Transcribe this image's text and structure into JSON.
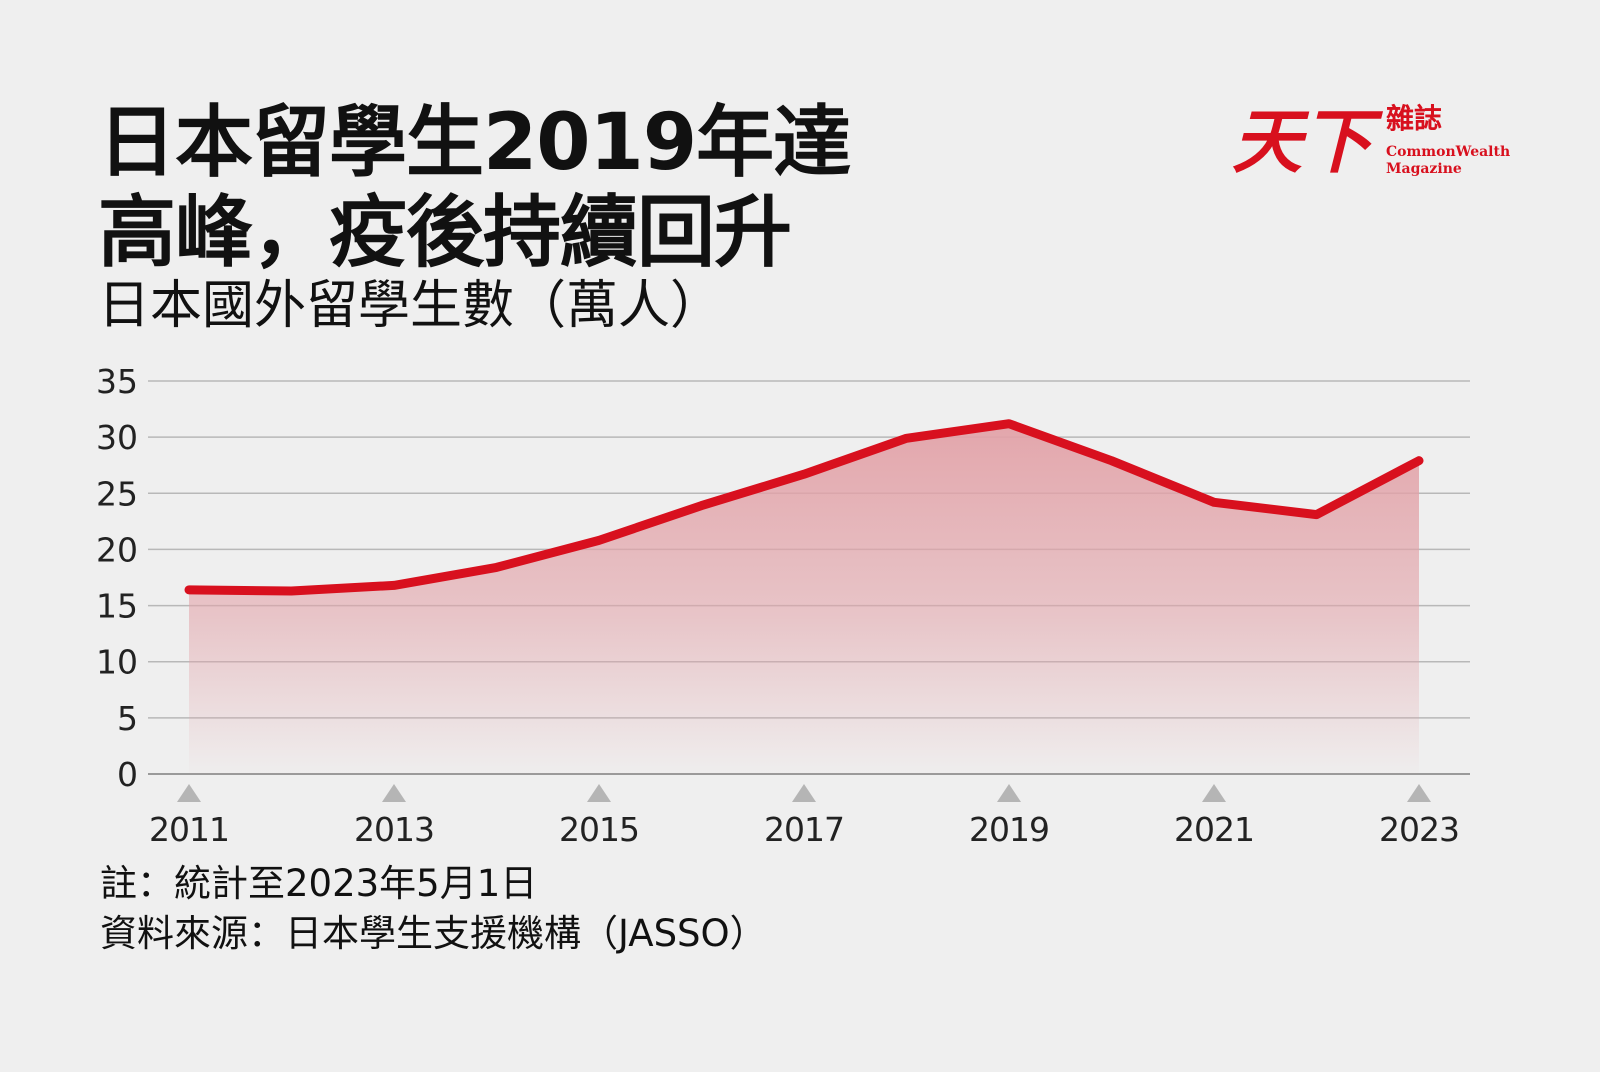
{
  "header": {
    "title_line1": "日本留學生2019年達",
    "title_line2": "高峰，疫後持續回升",
    "subtitle": "日本國外留學生數（萬人）"
  },
  "logo": {
    "brand": "天下",
    "brand_sub": "雜誌",
    "brand_en_line1": "CommonWealth",
    "brand_en_line2": "Magazine"
  },
  "footnotes": {
    "note": "註：統計至2023年5月1日",
    "source": "資料來源：日本學生支援機構（JASSO）"
  },
  "colors": {
    "line": "#d8101e",
    "fill": "#e2a2a8",
    "grid": "#b8b8b8",
    "marker": "#b5b5b5",
    "background": "#efefef"
  },
  "chart_data": {
    "type": "area",
    "title": "日本國外留學生數（萬人）",
    "x": [
      2011,
      2012,
      2013,
      2014,
      2015,
      2016,
      2017,
      2018,
      2019,
      2020,
      2021,
      2022,
      2023
    ],
    "series": [
      {
        "values": [
          16.4,
          16.3,
          16.8,
          18.4,
          20.8,
          23.9,
          26.7,
          29.9,
          31.2,
          27.9,
          24.2,
          23.1,
          27.9
        ]
      }
    ],
    "xticks": [
      "2011",
      "2013",
      "2015",
      "2017",
      "2019",
      "2021",
      "2023"
    ],
    "yticks": [
      0,
      5,
      10,
      15,
      20,
      25,
      30,
      35
    ],
    "ylim": [
      0,
      35
    ],
    "xlim": [
      2011,
      2023
    ],
    "grid": true,
    "legend": "none"
  }
}
